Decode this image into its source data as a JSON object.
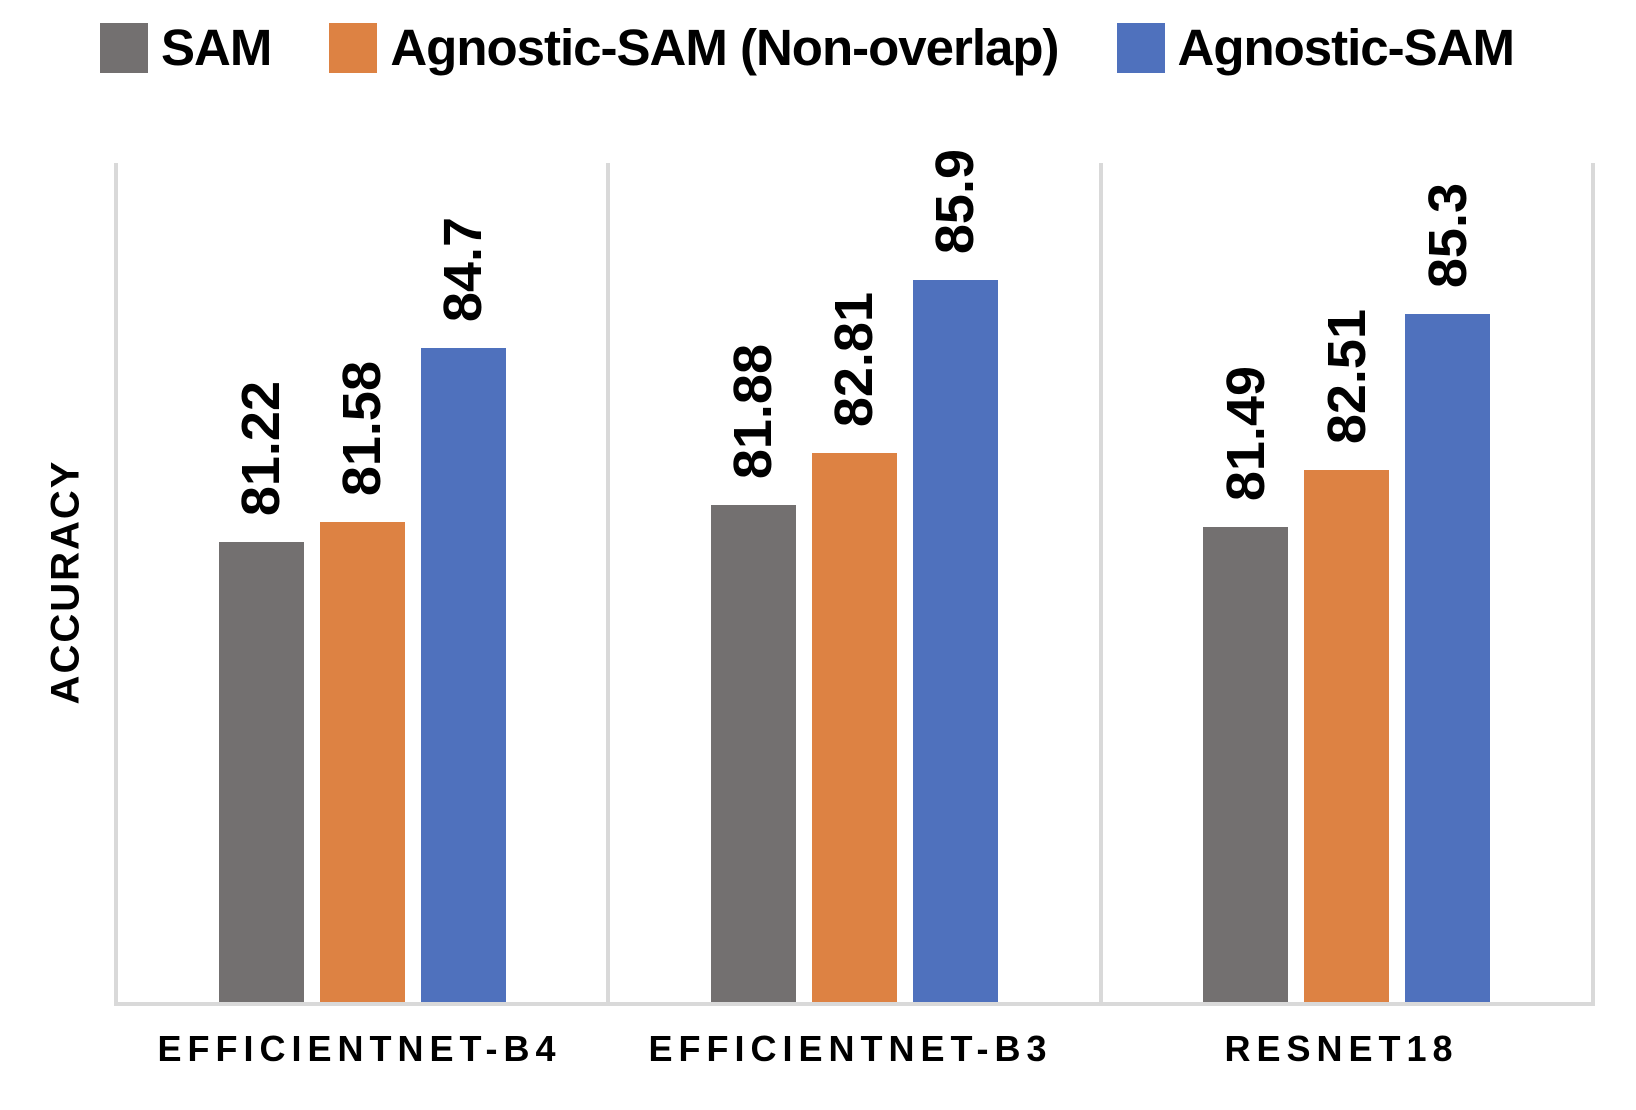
{
  "chart_data": {
    "type": "bar",
    "title": "",
    "ylabel": "ACCURACY",
    "xlabel": "",
    "categories": [
      "EFFICIENTNET-B4",
      "EFFICIENTNET-B3",
      "RESNET18"
    ],
    "series": [
      {
        "name": "SAM",
        "color": "#737070",
        "values": [
          81.22,
          81.88,
          81.49
        ]
      },
      {
        "name": "Agnostic-SAM (Non-overlap)",
        "color": "#DD8243",
        "values": [
          81.58,
          82.81,
          82.51
        ]
      },
      {
        "name": "Agnostic-SAM",
        "color": "#4F71BD",
        "values": [
          84.7,
          85.9,
          85.3
        ]
      }
    ],
    "value_labels": [
      [
        "81.22",
        "81.58",
        "84.7"
      ],
      [
        "81.88",
        "82.81",
        "85.9"
      ],
      [
        "81.49",
        "82.51",
        "85.3"
      ]
    ],
    "ylim": [
      73,
      88
    ],
    "grid": false,
    "y_ticks_visible": false,
    "legend_position": "top",
    "axis_line_color": "#D9D9D9",
    "text_color": "#000000"
  }
}
